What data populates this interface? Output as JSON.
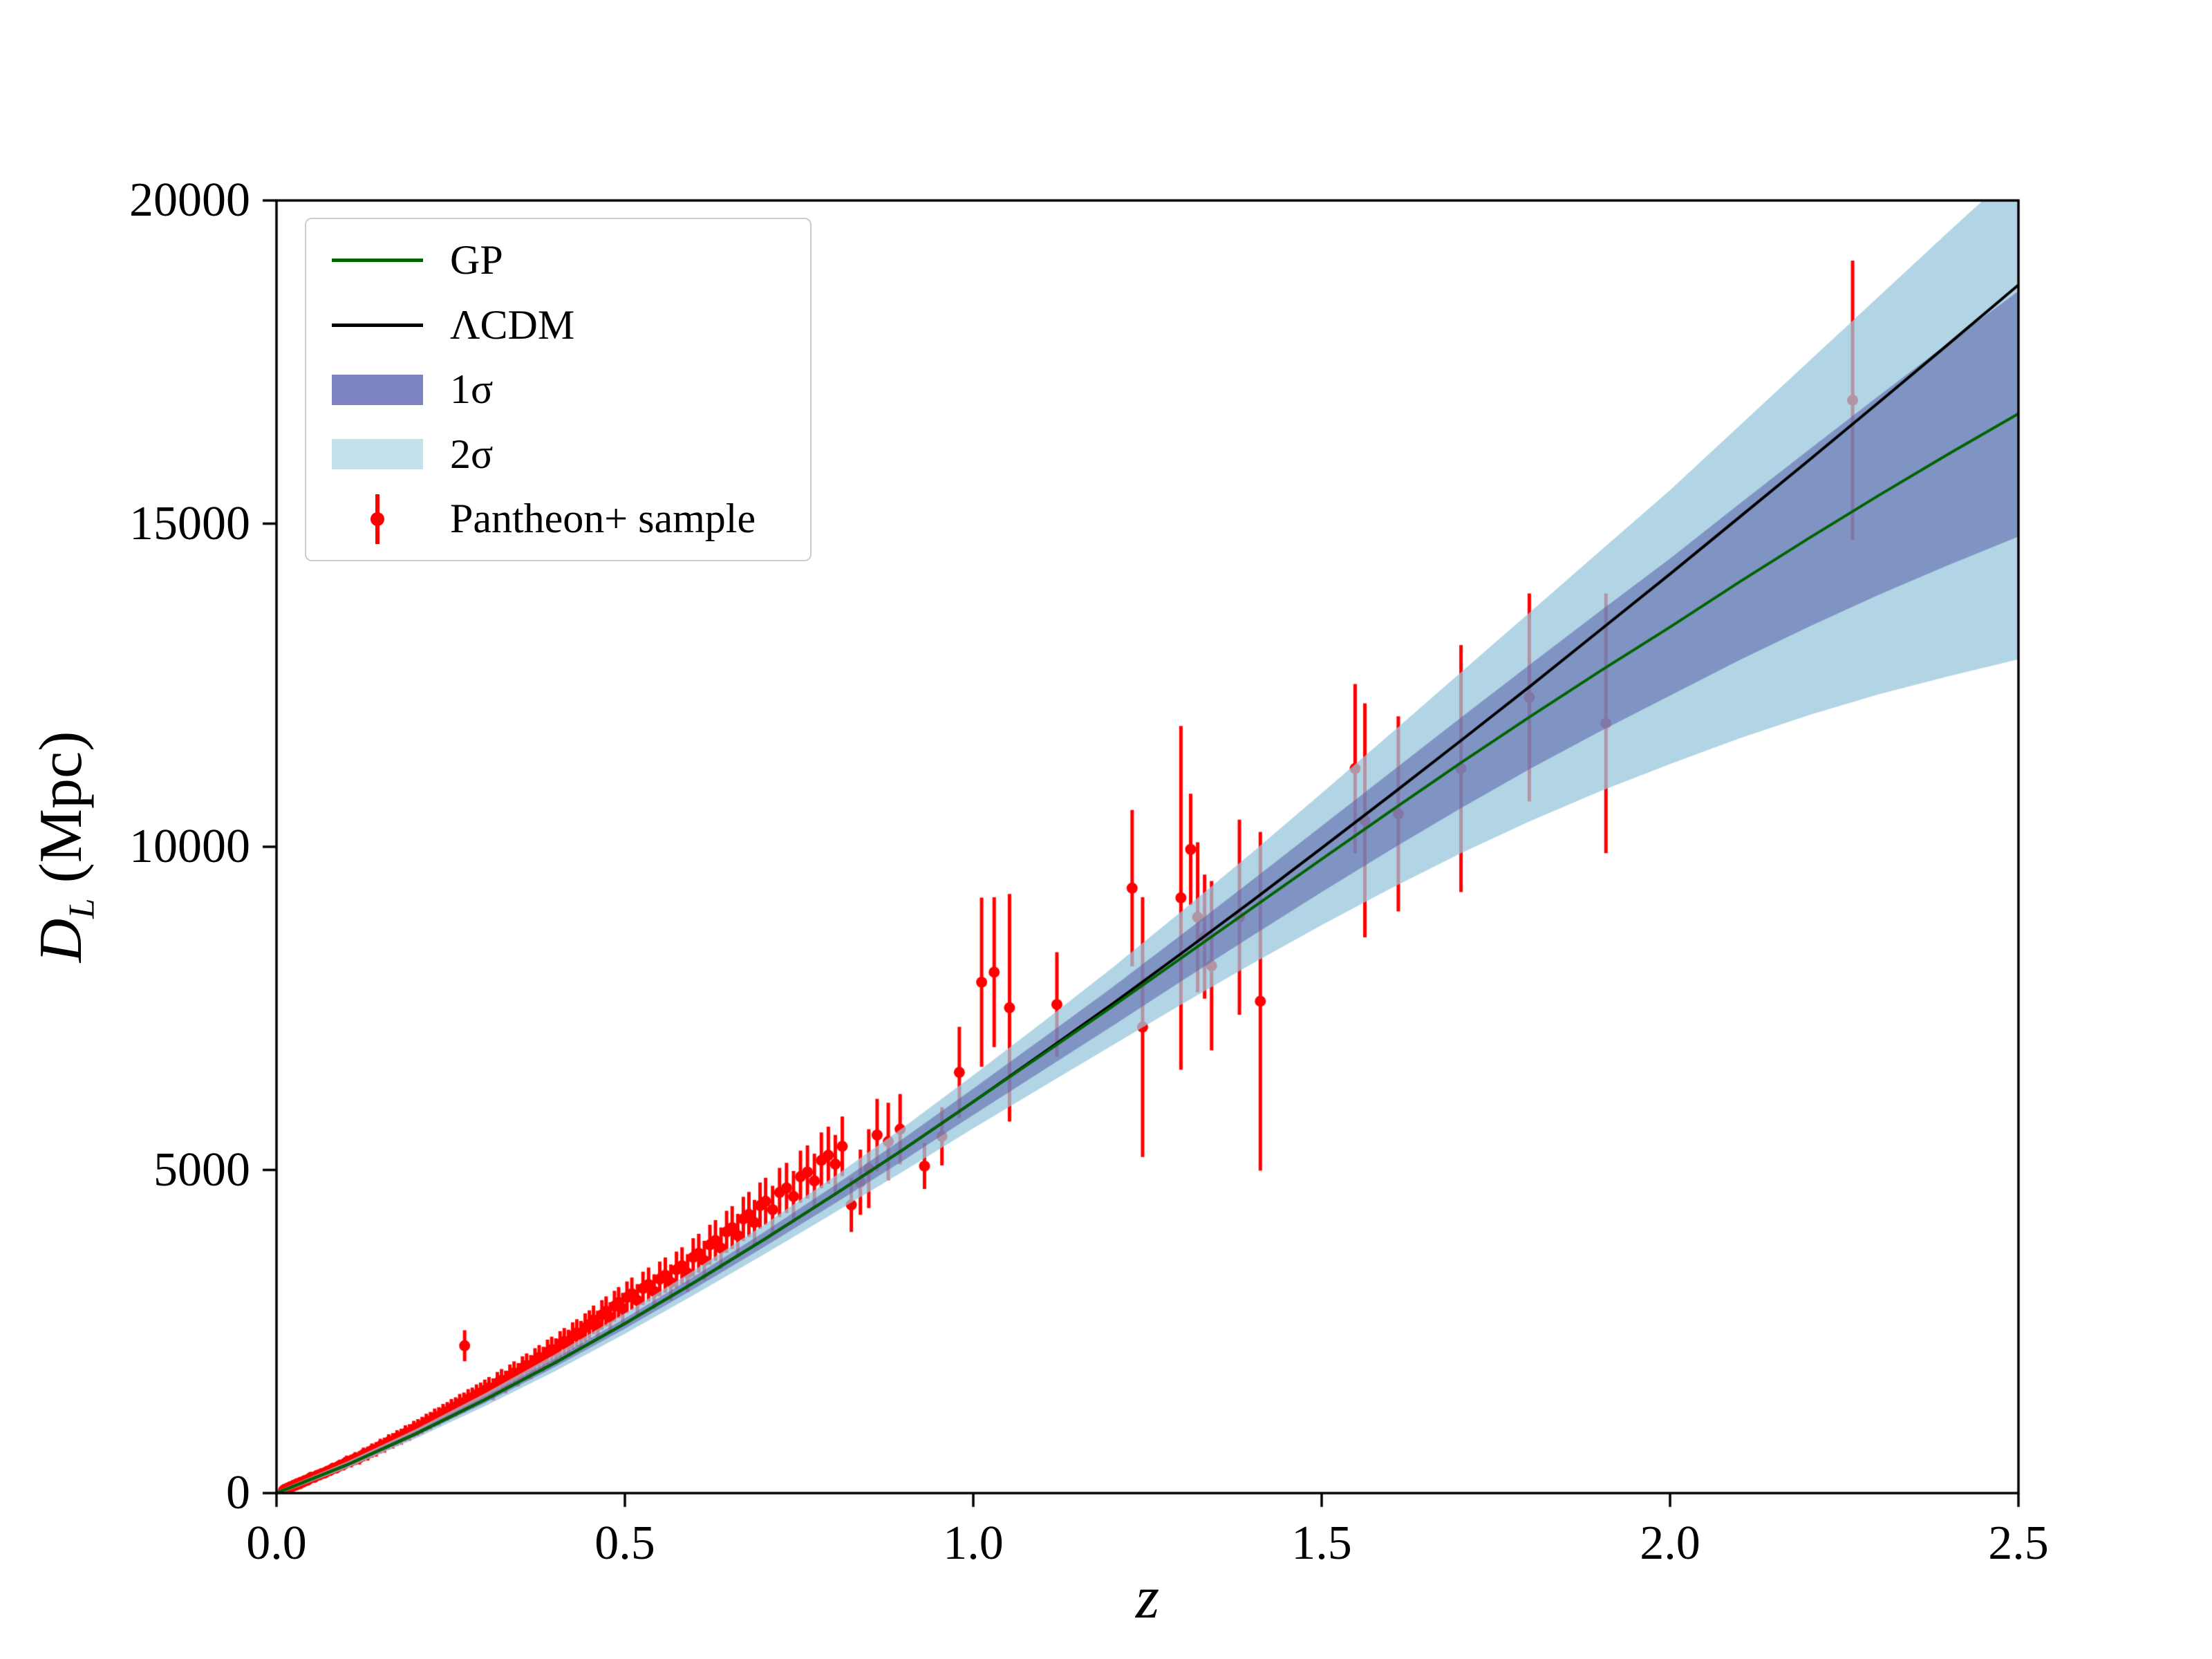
{
  "chart_data": {
    "type": "line",
    "title": "",
    "xlabel": "z",
    "ylabel": "D_L (Mpc)",
    "ylabel_parts": {
      "symbol": "D",
      "subscript": "L",
      "unit": " (Mpc)"
    },
    "xlim": [
      0.0,
      2.5
    ],
    "ylim": [
      0,
      20000
    ],
    "xticks": [
      0.0,
      0.5,
      1.0,
      1.5,
      2.0,
      2.5
    ],
    "xtick_labels": [
      "0.0",
      "0.5",
      "1.0",
      "1.5",
      "2.0",
      "2.5"
    ],
    "yticks": [
      0,
      5000,
      10000,
      15000,
      20000
    ],
    "ytick_labels": [
      "0",
      "5000",
      "10000",
      "15000",
      "20000"
    ],
    "grid": false,
    "legend_position": "upper left",
    "colors": {
      "gp": "#006400",
      "lcdm": "#000000",
      "sigma1_fill": "rgba(88,94,170,0.55)",
      "sigma2_fill": "rgba(152,199,220,0.75)",
      "scatter": "#ff0000",
      "legend_sigma1_patch": "#7d82c1",
      "legend_sigma2_patch": "#c4e0ec"
    },
    "legend": {
      "entries": [
        {
          "label": "GP",
          "swatch": "line",
          "color": "#006400"
        },
        {
          "label": "ΛCDM",
          "swatch": "line",
          "color": "#000000"
        },
        {
          "label": "1σ",
          "swatch": "patch",
          "color": "#7d82c1"
        },
        {
          "label": "2σ",
          "swatch": "patch",
          "color": "#c4e0ec"
        },
        {
          "label": "Pantheon+ sample",
          "swatch": "errorbar",
          "color": "#ff0000"
        }
      ]
    },
    "curves": {
      "z": [
        0.0,
        0.1,
        0.2,
        0.3,
        0.4,
        0.5,
        0.6,
        0.7,
        0.8,
        0.9,
        1.0,
        1.1,
        1.2,
        1.3,
        1.4,
        1.5,
        1.6,
        1.7,
        1.8,
        1.9,
        2.0,
        2.1,
        2.2,
        2.3,
        2.4,
        2.5
      ],
      "lcdm": [
        0,
        431,
        918,
        1449,
        2019,
        2624,
        3261,
        3925,
        4613,
        5320,
        6054,
        6808,
        7570,
        8361,
        9161,
        9979,
        10807,
        11644,
        12490,
        13355,
        14220,
        15103,
        15987,
        16880,
        17782,
        18693
      ],
      "gp": [
        0,
        431,
        918,
        1449,
        2019,
        2624,
        3261,
        3925,
        4613,
        5320,
        6054,
        6790,
        7530,
        8290,
        9050,
        9810,
        10560,
        11300,
        12020,
        12720,
        13400,
        14100,
        14780,
        15440,
        16080,
        16700
      ],
      "sigma1": [
        15,
        25,
        35,
        50,
        65,
        80,
        95,
        115,
        140,
        170,
        205,
        250,
        300,
        360,
        430,
        510,
        600,
        700,
        810,
        930,
        1060,
        1210,
        1370,
        1540,
        1720,
        1900
      ],
      "sigma2": [
        30,
        50,
        70,
        100,
        130,
        160,
        190,
        230,
        280,
        340,
        410,
        500,
        600,
        720,
        860,
        1020,
        1200,
        1400,
        1620,
        1860,
        2120,
        2420,
        2740,
        3080,
        3440,
        3800
      ]
    },
    "scatter": {
      "label": "Pantheon+ sample",
      "color": "#ff0000",
      "points": [
        [
          0.01,
          42,
          65
        ],
        [
          0.012,
          58,
          60
        ],
        [
          0.014,
          57,
          55
        ],
        [
          0.016,
          78,
          58
        ],
        [
          0.018,
          80,
          60
        ],
        [
          0.02,
          98,
          62
        ],
        [
          0.023,
          104,
          58
        ],
        [
          0.025,
          122,
          62
        ],
        [
          0.028,
          124,
          60
        ],
        [
          0.03,
          148,
          62
        ],
        [
          0.033,
          143,
          64
        ],
        [
          0.035,
          168,
          66
        ],
        [
          0.038,
          170,
          66
        ],
        [
          0.041,
          196,
          68
        ],
        [
          0.044,
          198,
          68
        ],
        [
          0.047,
          222,
          72
        ],
        [
          0.05,
          246,
          72
        ],
        [
          0.054,
          243,
          74
        ],
        [
          0.058,
          272,
          76
        ],
        [
          0.061,
          280,
          78
        ],
        [
          0.065,
          302,
          78
        ],
        [
          0.069,
          312,
          82
        ],
        [
          0.073,
          338,
          82
        ],
        [
          0.077,
          352,
          84
        ],
        [
          0.081,
          382,
          86
        ],
        [
          0.086,
          392,
          88
        ],
        [
          0.091,
          428,
          90
        ],
        [
          0.096,
          442,
          92
        ],
        [
          0.101,
          485,
          96
        ],
        [
          0.107,
          496,
          98
        ],
        [
          0.113,
          535,
          100
        ],
        [
          0.119,
          546,
          104
        ],
        [
          0.125,
          598,
          106
        ],
        [
          0.131,
          612,
          108
        ],
        [
          0.137,
          658,
          110
        ],
        [
          0.143,
          676,
          112
        ],
        [
          0.149,
          726,
          114
        ],
        [
          0.155,
          742,
          116
        ],
        [
          0.161,
          792,
          118
        ],
        [
          0.167,
          808,
          120
        ],
        [
          0.173,
          852,
          122
        ],
        [
          0.179,
          872,
          124
        ],
        [
          0.185,
          922,
          126
        ],
        [
          0.191,
          938,
          128
        ],
        [
          0.197,
          988,
          130
        ],
        [
          0.203,
          1012,
          132
        ],
        [
          0.209,
          1046,
          134
        ],
        [
          0.215,
          1092,
          136
        ],
        [
          0.221,
          1118,
          138
        ],
        [
          0.227,
          1168,
          140
        ],
        [
          0.233,
          1188,
          142
        ],
        [
          0.239,
          1236,
          144
        ],
        [
          0.245,
          1262,
          146
        ],
        [
          0.251,
          1308,
          148
        ],
        [
          0.257,
          1332,
          150
        ],
        [
          0.263,
          1382,
          152
        ],
        [
          0.27,
          2280,
          240
        ],
        [
          0.269,
          1402,
          154
        ],
        [
          0.275,
          1452,
          156
        ],
        [
          0.281,
          1475,
          158
        ],
        [
          0.287,
          1522,
          160
        ],
        [
          0.293,
          1548,
          162
        ],
        [
          0.299,
          1592,
          164
        ],
        [
          0.305,
          1628,
          168
        ],
        [
          0.311,
          1605,
          170
        ],
        [
          0.317,
          1702,
          172
        ],
        [
          0.323,
          1745,
          174
        ],
        [
          0.329,
          1718,
          176
        ],
        [
          0.335,
          1812,
          178
        ],
        [
          0.341,
          1858,
          180
        ],
        [
          0.347,
          1830,
          182
        ],
        [
          0.353,
          1932,
          184
        ],
        [
          0.359,
          1975,
          186
        ],
        [
          0.365,
          1948,
          188
        ],
        [
          0.371,
          2052,
          190
        ],
        [
          0.377,
          2098,
          192
        ],
        [
          0.383,
          2070,
          194
        ],
        [
          0.389,
          2178,
          196
        ],
        [
          0.395,
          2222,
          198
        ],
        [
          0.401,
          2195,
          200
        ],
        [
          0.407,
          2302,
          204
        ],
        [
          0.413,
          2348,
          206
        ],
        [
          0.419,
          2320,
          208
        ],
        [
          0.425,
          2432,
          210
        ],
        [
          0.431,
          2478,
          212
        ],
        [
          0.437,
          2450,
          214
        ],
        [
          0.443,
          2562,
          218
        ],
        [
          0.449,
          2608,
          220
        ],
        [
          0.455,
          2680,
          222
        ],
        [
          0.461,
          2596,
          226
        ],
        [
          0.467,
          2758,
          228
        ],
        [
          0.473,
          2812,
          232
        ],
        [
          0.479,
          2720,
          234
        ],
        [
          0.485,
          2892,
          238
        ],
        [
          0.491,
          2948,
          240
        ],
        [
          0.497,
          2855,
          244
        ],
        [
          0.503,
          3028,
          246
        ],
        [
          0.51,
          3085,
          250
        ],
        [
          0.518,
          2980,
          254
        ],
        [
          0.526,
          3168,
          258
        ],
        [
          0.534,
          3228,
          262
        ],
        [
          0.542,
          3120,
          266
        ],
        [
          0.55,
          3312,
          270
        ],
        [
          0.558,
          3372,
          274
        ],
        [
          0.566,
          3260,
          278
        ],
        [
          0.574,
          3455,
          282
        ],
        [
          0.582,
          3518,
          286
        ],
        [
          0.59,
          3405,
          292
        ],
        [
          0.598,
          3648,
          296
        ],
        [
          0.606,
          3712,
          300
        ],
        [
          0.614,
          3598,
          306
        ],
        [
          0.622,
          3842,
          310
        ],
        [
          0.63,
          3908,
          316
        ],
        [
          0.638,
          3790,
          320
        ],
        [
          0.646,
          4042,
          326
        ],
        [
          0.654,
          4108,
          332
        ],
        [
          0.662,
          3985,
          336
        ],
        [
          0.67,
          4242,
          342
        ],
        [
          0.678,
          4312,
          348
        ],
        [
          0.686,
          4185,
          352
        ],
        [
          0.694,
          4448,
          358
        ],
        [
          0.702,
          4515,
          364
        ],
        [
          0.712,
          4385,
          370
        ],
        [
          0.722,
          4652,
          380
        ],
        [
          0.732,
          4722,
          388
        ],
        [
          0.742,
          4590,
          394
        ],
        [
          0.752,
          4895,
          404
        ],
        [
          0.762,
          4968,
          412
        ],
        [
          0.772,
          4830,
          422
        ],
        [
          0.782,
          5148,
          432
        ],
        [
          0.792,
          5228,
          442
        ],
        [
          0.802,
          5090,
          452
        ],
        [
          0.812,
          5365,
          462
        ],
        [
          0.825,
          4460,
          420
        ],
        [
          0.838,
          4810,
          505
        ],
        [
          0.85,
          5020,
          610
        ],
        [
          0.862,
          5540,
          560
        ],
        [
          0.878,
          5440,
          600
        ],
        [
          0.895,
          5630,
          545
        ],
        [
          0.93,
          5060,
          355
        ],
        [
          0.955,
          5520,
          450
        ],
        [
          0.98,
          6510,
          705
        ],
        [
          1.012,
          7905,
          1310
        ],
        [
          1.03,
          8060,
          1160
        ],
        [
          1.052,
          7510,
          1760
        ],
        [
          1.12,
          7560,
          810
        ],
        [
          1.228,
          9360,
          1210
        ],
        [
          1.243,
          7210,
          2010
        ],
        [
          1.298,
          9210,
          2660
        ],
        [
          1.312,
          9960,
          860
        ],
        [
          1.322,
          8910,
          1160
        ],
        [
          1.332,
          8610,
          960
        ],
        [
          1.342,
          8160,
          1310
        ],
        [
          1.382,
          8910,
          1510
        ],
        [
          1.412,
          7610,
          2620
        ],
        [
          1.548,
          11210,
          1310
        ],
        [
          1.562,
          10410,
          1810
        ],
        [
          1.61,
          10510,
          1510
        ],
        [
          1.7,
          11210,
          1910
        ],
        [
          1.798,
          12310,
          1610
        ],
        [
          1.908,
          11910,
          2010
        ],
        [
          2.262,
          16910,
          2160
        ]
      ]
    }
  }
}
